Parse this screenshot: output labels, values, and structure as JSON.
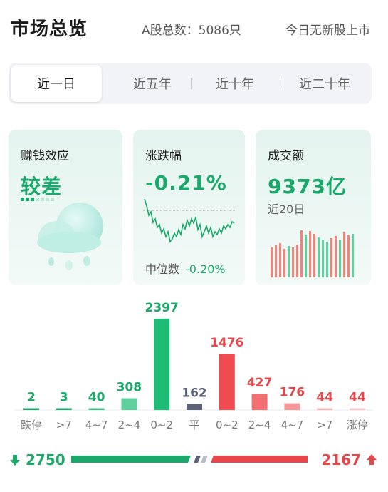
{
  "header": {
    "title": "市场总览",
    "total_label": "A股总数：",
    "total_value": "5086只",
    "ipo_text": "今日无新股上市"
  },
  "tabs": [
    {
      "label": "近一日",
      "active": true
    },
    {
      "label": "近五年",
      "active": false
    },
    {
      "label": "近十年",
      "active": false
    },
    {
      "label": "近二十年",
      "active": false
    }
  ],
  "cards": {
    "effect": {
      "title": "赚钱效应",
      "value": "较差",
      "icon": "cloud-rain-icon",
      "meter_level": 0.3
    },
    "change": {
      "title": "涨跌幅",
      "value": "-0.21%",
      "median_label": "中位数",
      "median_value": "-0.20%"
    },
    "volume": {
      "title": "成交额",
      "value": "9373亿",
      "period": "近20日"
    }
  },
  "chart_data": {
    "type": "bar",
    "categories": [
      "跌停",
      ">7",
      "4~7",
      "2~4",
      "0~2",
      "平",
      "0~2",
      "2~4",
      "4~7",
      ">7",
      "涨停"
    ],
    "values": [
      2,
      3,
      40,
      308,
      2397,
      162,
      1476,
      427,
      176,
      44,
      44
    ],
    "labels": [
      "2",
      "3",
      "40",
      "308",
      "2397",
      "162",
      "1476",
      "427",
      "176",
      "44",
      "44"
    ],
    "colors": [
      "#1aa86b",
      "#1aa86b",
      "#1aa86b",
      "#1aa86b",
      "#1aa86b",
      "#5b6275",
      "#e8464a",
      "#e8464a",
      "#e8464a",
      "#e8464a",
      "#e8464a"
    ],
    "bar_colors": [
      "#1aa86b",
      "#1aa86b",
      "#3cbf85",
      "#5fcf9d",
      "#1dbb74",
      "#5b6275",
      "#f04b50",
      "#f27074",
      "#f59699",
      "#f8b4b6",
      "#f8c6c8"
    ]
  },
  "summary": {
    "down_count": "2750",
    "up_count": "2167",
    "down_fraction": 0.559,
    "up_fraction": 0.441,
    "colors": {
      "down": "#1aa86b",
      "up": "#e8464a",
      "flat": "#5b6275"
    }
  }
}
